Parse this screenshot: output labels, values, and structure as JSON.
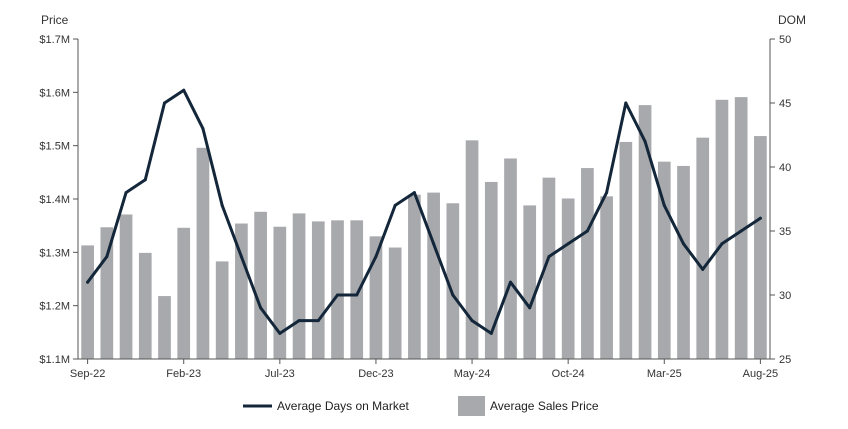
{
  "chart_data": {
    "type": "bar",
    "categories": [
      "Sep-22",
      "Oct-22",
      "Nov-22",
      "Dec-22",
      "Jan-23",
      "Feb-23",
      "Mar-23",
      "Apr-23",
      "May-23",
      "Jun-23",
      "Jul-23",
      "Aug-23",
      "Sep-23",
      "Oct-23",
      "Nov-23",
      "Dec-23",
      "Jan-24",
      "Feb-24",
      "Mar-24",
      "Apr-24",
      "May-24",
      "Jun-24",
      "Jul-24",
      "Aug-24",
      "Sep-24",
      "Oct-24",
      "Nov-24",
      "Dec-24",
      "Jan-25",
      "Feb-25",
      "Mar-25",
      "Apr-25",
      "May-25",
      "Jun-25",
      "Jul-25",
      "Aug-25"
    ],
    "x_tick_labels": [
      "Sep-22",
      "Feb-23",
      "Jul-23",
      "Dec-23",
      "May-24",
      "Oct-24",
      "Mar-25",
      "Aug-25"
    ],
    "series": [
      {
        "name": "Average Sales Price",
        "type": "bar",
        "axis": "left",
        "color": "#a7a9ac",
        "values": [
          1.313,
          1.347,
          1.371,
          1.299,
          1.218,
          1.346,
          1.496,
          1.283,
          1.354,
          1.376,
          1.348,
          1.373,
          1.358,
          1.36,
          1.36,
          1.33,
          1.309,
          1.408,
          1.412,
          1.392,
          1.51,
          1.432,
          1.476,
          1.388,
          1.44,
          1.401,
          1.458,
          1.405,
          1.507,
          1.576,
          1.47,
          1.462,
          1.515,
          1.586,
          1.591,
          1.518
        ]
      },
      {
        "name": "Average Days on Market",
        "type": "line",
        "axis": "right",
        "color": "#14273a",
        "values": [
          31,
          33,
          38,
          39,
          45,
          46,
          43,
          37,
          33,
          29,
          27,
          28,
          28,
          30,
          30,
          33,
          37,
          38,
          34,
          30,
          28,
          27,
          31,
          29,
          33,
          34,
          35,
          38,
          45,
          42,
          37,
          34,
          32,
          34,
          35,
          36
        ]
      }
    ],
    "y_left": {
      "label": "Price",
      "ylim": [
        1.1,
        1.7
      ],
      "ticks": [
        1.1,
        1.2,
        1.3,
        1.4,
        1.5,
        1.6,
        1.7
      ],
      "tick_labels": [
        "$1.1M",
        "$1.2M",
        "$1.3M",
        "$1.4M",
        "$1.5M",
        "$1.6M",
        "$1.7M"
      ]
    },
    "y_right": {
      "label": "DOM",
      "ylim": [
        25,
        50
      ],
      "ticks": [
        25,
        30,
        35,
        40,
        45,
        50
      ],
      "tick_labels": [
        "25",
        "30",
        "35",
        "40",
        "45",
        "50"
      ]
    },
    "grid": false,
    "legend_position": "bottom"
  },
  "legend": {
    "line_label": "Average Days on Market",
    "bar_label": "Average Sales Price"
  }
}
